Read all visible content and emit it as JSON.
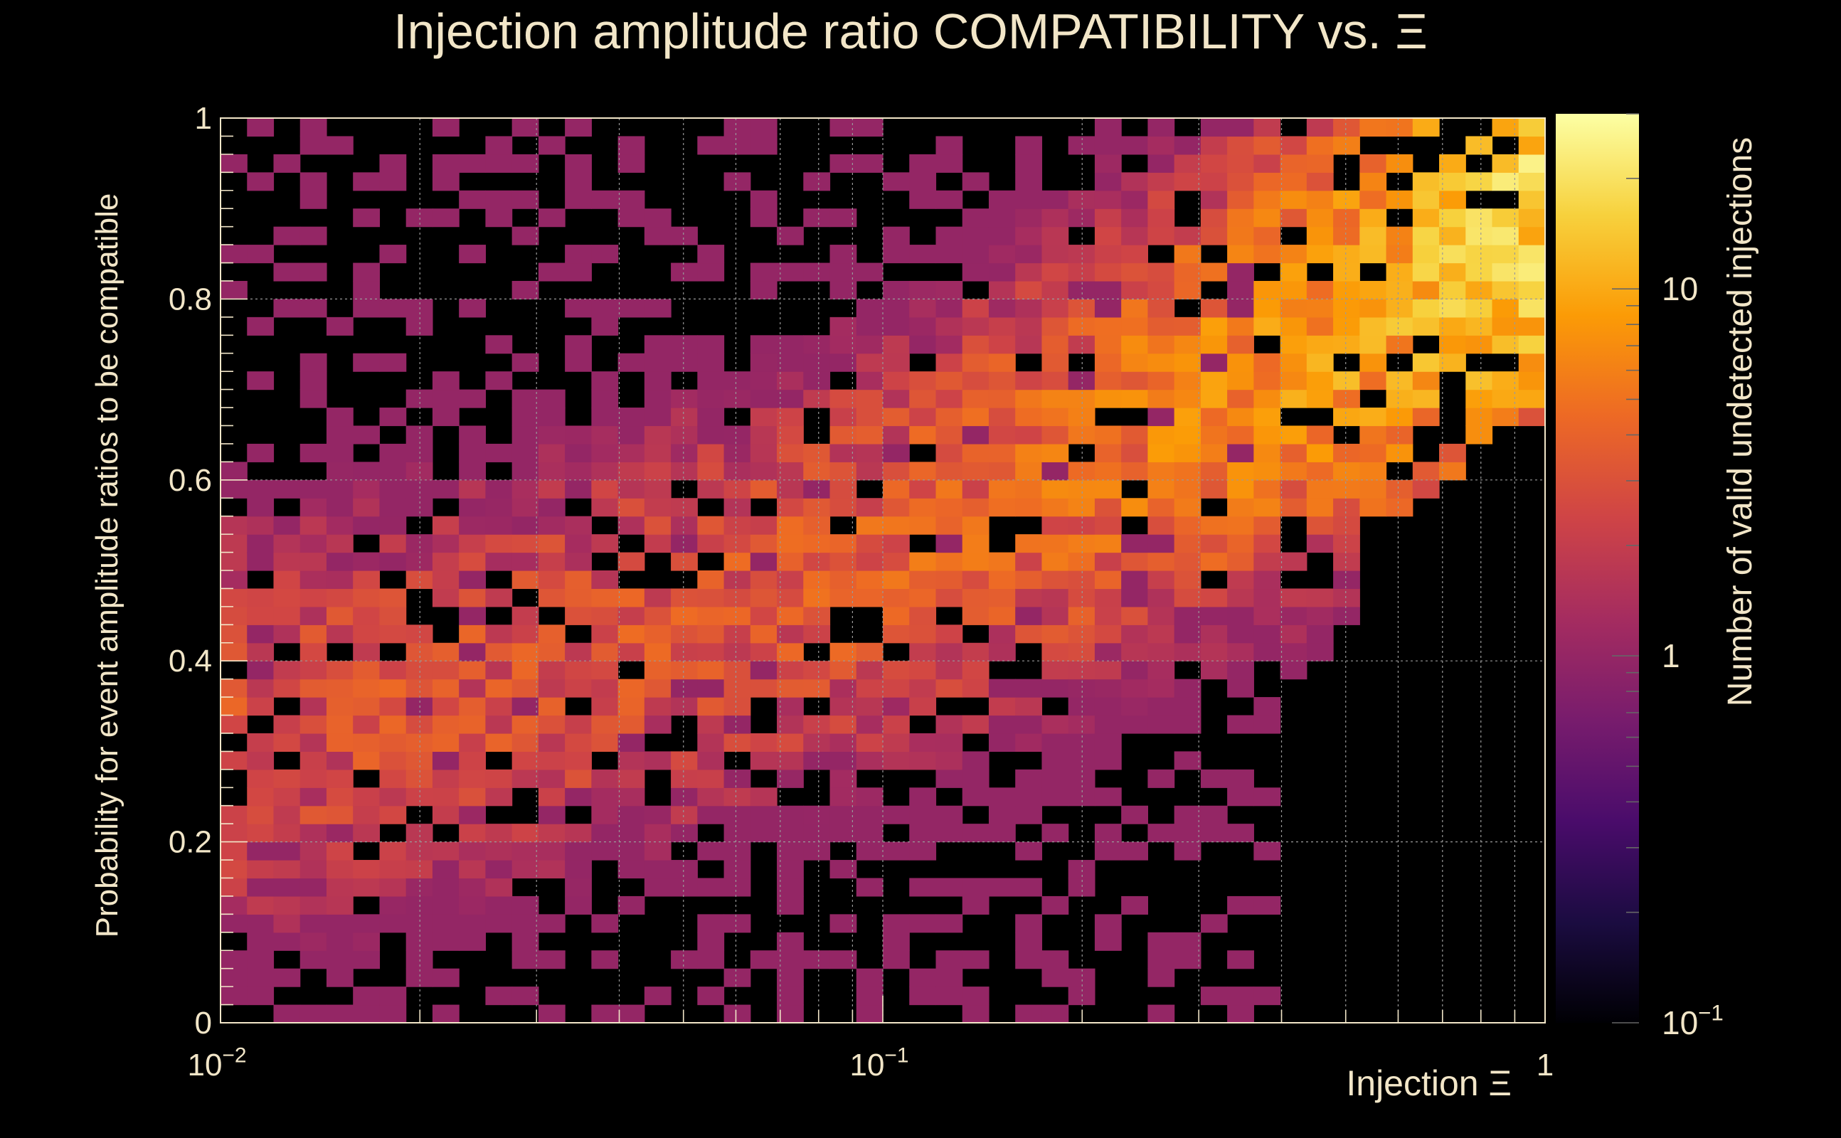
{
  "chart_data": {
    "type": "heatmap",
    "title": "Injection amplitude ratio COMPATIBILITY vs.  Ξ",
    "xlabel": "Injection Ξ",
    "ylabel": "Probability for event amplitude ratios to be compatible",
    "zlabel": "Number of valid undetected injections",
    "x_scale": "log",
    "z_scale": "log",
    "xlim": [
      0.01,
      1
    ],
    "ylim": [
      0,
      1
    ],
    "zlim": [
      0.1,
      30
    ],
    "x_bins": 50,
    "y_bins": 50,
    "x_ticks": [
      {
        "value": 0.01,
        "mantissa": "10",
        "exponent": "−2"
      },
      {
        "value": 0.1,
        "mantissa": "10",
        "exponent": "−1"
      },
      {
        "value": 1,
        "mantissa": "1",
        "exponent": ""
      }
    ],
    "y_ticks": [
      {
        "value": 0,
        "label": "0"
      },
      {
        "value": 0.2,
        "label": "0.2"
      },
      {
        "value": 0.4,
        "label": "0.4"
      },
      {
        "value": 0.6,
        "label": "0.6"
      },
      {
        "value": 0.8,
        "label": "0.8"
      },
      {
        "value": 1,
        "label": "1"
      }
    ],
    "z_ticks": [
      {
        "value": 0.1,
        "mantissa": "10",
        "exponent": "−1"
      },
      {
        "value": 1,
        "mantissa": "1",
        "exponent": ""
      },
      {
        "value": 10,
        "mantissa": "10",
        "exponent": ""
      }
    ],
    "grid": true,
    "colormap": "inferno",
    "colormap_stops": [
      "#000004",
      "#1b0c41",
      "#4a0c6b",
      "#781c6d",
      "#a52c60",
      "#cf4446",
      "#ed6925",
      "#fb9b06",
      "#f7d13d",
      "#fcffa4"
    ],
    "distribution": {
      "description": "counts per bin (approximate, read from color scale)",
      "main_band": {
        "y_at_xmin": 0.33,
        "y_at_xmax": 0.92,
        "y_width": 0.28,
        "peak_counts": 20,
        "base_counts": 3
      },
      "upper_cutoff_y_at_x": [
        [
          0.6,
          1.0
        ],
        [
          0.7,
          0.72
        ],
        [
          0.85,
          0.9
        ]
      ],
      "lower_boundary_region": "sparse isolated counts of 1 near upper edge and lower-left"
    }
  },
  "colors": {
    "background": "#000000",
    "text": "#f2e6c8",
    "grid": "#9a9a9a"
  }
}
